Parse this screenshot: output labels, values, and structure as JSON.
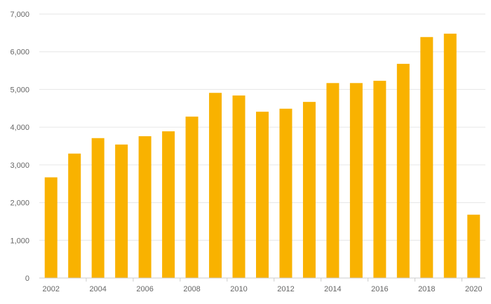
{
  "chart_data": {
    "type": "bar",
    "categories": [
      "2002",
      "2003",
      "2004",
      "2005",
      "2006",
      "2007",
      "2008",
      "2009",
      "2010",
      "2011",
      "2012",
      "2013",
      "2014",
      "2015",
      "2016",
      "2017",
      "2018",
      "2019",
      "2020"
    ],
    "x_tick_labels": [
      "2002",
      "2004",
      "2006",
      "2008",
      "2010",
      "2012",
      "2014",
      "2016",
      "2018",
      "2020"
    ],
    "y_tick_labels": [
      "0",
      "1,000",
      "2,000",
      "3,000",
      "4,000",
      "5,000",
      "6,000",
      "7,000"
    ],
    "values": [
      2670,
      3300,
      3710,
      3540,
      3760,
      3890,
      4280,
      4910,
      4840,
      4410,
      4490,
      4670,
      5170,
      5170,
      5230,
      5680,
      6390,
      6480,
      1680
    ],
    "ylim": [
      0,
      7000
    ],
    "grid": true,
    "title": "",
    "xlabel": "",
    "ylabel": "",
    "colors": {
      "bar": "#F9B200",
      "grid": "#E6E6E6",
      "axis": "#CCCCCC",
      "text": "#666666"
    }
  }
}
